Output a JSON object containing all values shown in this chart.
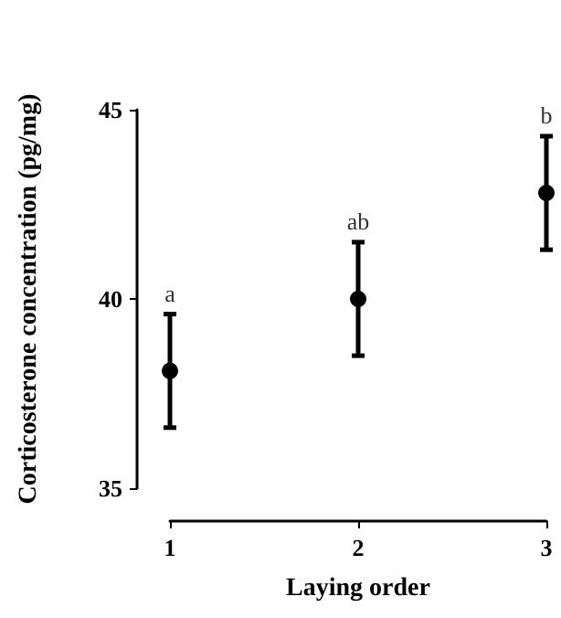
{
  "chart_data": {
    "type": "scatter",
    "xlabel": "Laying order",
    "ylabel": "Corticosterone concentration (pg/mg)",
    "x": [
      1,
      2,
      3
    ],
    "values": [
      38.1,
      40.0,
      42.8
    ],
    "errors": [
      1.5,
      1.5,
      1.5
    ],
    "color": "#000000",
    "marker": "circle",
    "xlim": [
      1,
      3
    ],
    "xticks": [
      1,
      2,
      3
    ],
    "ylim": [
      35,
      45
    ],
    "yticks": [
      35,
      40,
      45
    ],
    "grid": false,
    "annotations": [
      "a",
      "ab",
      "b"
    ]
  }
}
